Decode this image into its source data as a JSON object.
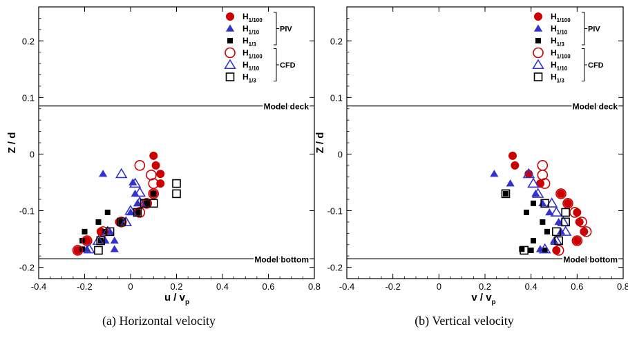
{
  "chart_data": [
    {
      "type": "scatter",
      "caption": "(a) Horizontal velocity",
      "xlabel": "u / v",
      "xlabel_sub": "p",
      "ylabel": "Z / d",
      "xlim": [
        -0.4,
        0.8
      ],
      "ylim": [
        -0.22,
        0.26
      ],
      "xticks": [
        -0.4,
        -0.2,
        0,
        0.2,
        0.4,
        0.6,
        0.8
      ],
      "xtick_labels": [
        "-0.4",
        "-0.2",
        "0",
        "0.2",
        "0.4",
        "0.6",
        "0.8"
      ],
      "yticks": [
        -0.2,
        -0.1,
        0,
        0.1,
        0.2
      ],
      "ytick_labels": [
        "-0.2",
        "-0.1",
        "0",
        "0.1",
        "0.2"
      ],
      "reference_lines": [
        {
          "label": "Model deck",
          "y": 0.085
        },
        {
          "label": "Model bottom",
          "y": -0.185
        }
      ],
      "legend": {
        "placement": "top-right",
        "groups": [
          {
            "label": "PIV",
            "entries": [
              0,
              1,
              2
            ]
          },
          {
            "label": "CFD",
            "entries": [
              3,
              4,
              5
            ]
          }
        ]
      },
      "series": [
        {
          "name": "H",
          "sub": "1/100",
          "marker": "circle-filled",
          "color": "#cc0000",
          "points": [
            [
              0.1,
              -0.003
            ],
            [
              0.11,
              -0.02
            ],
            [
              0.13,
              -0.035
            ],
            [
              0.13,
              -0.052
            ],
            [
              0.1,
              -0.07
            ],
            [
              0.07,
              -0.087
            ],
            [
              0.03,
              -0.103
            ],
            [
              -0.05,
              -0.12
            ],
            [
              -0.13,
              -0.137
            ],
            [
              -0.19,
              -0.153
            ],
            [
              -0.23,
              -0.17
            ]
          ]
        },
        {
          "name": "H",
          "sub": "1/10",
          "marker": "triangle-filled",
          "color": "#3333cc",
          "points": [
            [
              -0.12,
              -0.035
            ],
            [
              0.01,
              -0.05
            ],
            [
              0.02,
              -0.07
            ],
            [
              0.03,
              -0.087
            ],
            [
              0.0,
              -0.103
            ],
            [
              -0.04,
              -0.12
            ],
            [
              -0.09,
              -0.137
            ],
            [
              -0.07,
              -0.153
            ],
            [
              -0.11,
              -0.153
            ],
            [
              -0.19,
              -0.168
            ],
            [
              -0.07,
              -0.168
            ]
          ]
        },
        {
          "name": "H",
          "sub": "1/3",
          "marker": "square-filled",
          "color": "#000000",
          "points": [
            [
              0.1,
              -0.07
            ],
            [
              0.07,
              -0.087
            ],
            [
              0.03,
              -0.103
            ],
            [
              -0.1,
              -0.103
            ],
            [
              -0.04,
              -0.12
            ],
            [
              -0.14,
              -0.12
            ],
            [
              -0.2,
              -0.137
            ],
            [
              -0.11,
              -0.137
            ],
            [
              -0.21,
              -0.153
            ],
            [
              -0.13,
              -0.153
            ],
            [
              -0.21,
              -0.168
            ]
          ]
        },
        {
          "name": "H",
          "sub": "1/100",
          "marker": "circle-open",
          "color": "#cc0000",
          "points": [
            [
              0.04,
              -0.02
            ],
            [
              0.09,
              -0.037
            ],
            [
              0.1,
              -0.052
            ],
            [
              0.1,
              -0.07
            ],
            [
              0.07,
              -0.087
            ],
            [
              0.04,
              -0.103
            ],
            [
              -0.04,
              -0.12
            ],
            [
              -0.12,
              -0.137
            ],
            [
              -0.19,
              -0.153
            ],
            [
              -0.23,
              -0.17
            ]
          ]
        },
        {
          "name": "H",
          "sub": "1/10",
          "marker": "triangle-open",
          "color": "#3333cc",
          "points": [
            [
              -0.04,
              -0.035
            ],
            [
              0.02,
              -0.052
            ],
            [
              0.04,
              -0.068
            ],
            [
              0.04,
              -0.085
            ],
            [
              0.0,
              -0.1
            ],
            [
              -0.02,
              -0.12
            ],
            [
              -0.1,
              -0.137
            ],
            [
              -0.14,
              -0.153
            ],
            [
              -0.18,
              -0.168
            ]
          ]
        },
        {
          "name": "H",
          "sub": "1/3",
          "marker": "square-open",
          "color": "#000000",
          "points": [
            [
              0.2,
              -0.052
            ],
            [
              0.2,
              -0.07
            ],
            [
              0.1,
              -0.087
            ],
            [
              0.06,
              -0.087
            ],
            [
              0.03,
              -0.103
            ],
            [
              -0.04,
              -0.12
            ],
            [
              -0.09,
              -0.137
            ],
            [
              -0.13,
              -0.153
            ],
            [
              -0.14,
              -0.17
            ]
          ]
        }
      ]
    },
    {
      "type": "scatter",
      "caption": "(b) Vertical velocity",
      "xlabel": "v / v",
      "xlabel_sub": "p",
      "ylabel": "Z / d",
      "xlim": [
        -0.4,
        0.8
      ],
      "ylim": [
        -0.22,
        0.26
      ],
      "xticks": [
        -0.4,
        -0.2,
        0,
        0.2,
        0.4,
        0.6,
        0.8
      ],
      "xtick_labels": [
        "-0.4",
        "-0.2",
        "0",
        "0.2",
        "0.4",
        "0.6",
        "0.8"
      ],
      "yticks": [
        -0.2,
        -0.1,
        0,
        0.1,
        0.2
      ],
      "ytick_labels": [
        "-0.2",
        "-0.1",
        "0",
        "0.1",
        "0.2"
      ],
      "reference_lines": [
        {
          "label": "Model deck",
          "y": 0.085
        },
        {
          "label": "Model bottom",
          "y": -0.185
        }
      ],
      "legend": {
        "placement": "top-right",
        "groups": [
          {
            "label": "PIV",
            "entries": [
              0,
              1,
              2
            ]
          },
          {
            "label": "CFD",
            "entries": [
              3,
              4,
              5
            ]
          }
        ]
      },
      "series": [
        {
          "name": "H",
          "sub": "1/100",
          "marker": "circle-filled",
          "color": "#cc0000",
          "points": [
            [
              0.32,
              -0.003
            ],
            [
              0.33,
              -0.02
            ],
            [
              0.39,
              -0.035
            ],
            [
              0.44,
              -0.052
            ],
            [
              0.53,
              -0.07
            ],
            [
              0.56,
              -0.087
            ],
            [
              0.6,
              -0.103
            ],
            [
              0.61,
              -0.12
            ],
            [
              0.63,
              -0.137
            ],
            [
              0.6,
              -0.153
            ],
            [
              0.51,
              -0.17
            ]
          ]
        },
        {
          "name": "H",
          "sub": "1/10",
          "marker": "triangle-filled",
          "color": "#3333cc",
          "points": [
            [
              0.24,
              -0.035
            ],
            [
              0.31,
              -0.052
            ],
            [
              0.42,
              -0.07
            ],
            [
              0.45,
              -0.087
            ],
            [
              0.48,
              -0.103
            ],
            [
              0.52,
              -0.12
            ],
            [
              0.53,
              -0.137
            ],
            [
              0.5,
              -0.153
            ],
            [
              0.44,
              -0.168
            ]
          ]
        },
        {
          "name": "H",
          "sub": "1/3",
          "marker": "square-filled",
          "color": "#000000",
          "points": [
            [
              0.29,
              -0.07
            ],
            [
              0.41,
              -0.087
            ],
            [
              0.38,
              -0.103
            ],
            [
              0.45,
              -0.12
            ],
            [
              0.47,
              -0.137
            ],
            [
              0.41,
              -0.153
            ],
            [
              0.36,
              -0.168
            ],
            [
              0.4,
              -0.17
            ],
            [
              0.46,
              -0.17
            ]
          ]
        },
        {
          "name": "H",
          "sub": "1/100",
          "marker": "circle-open",
          "color": "#cc0000",
          "points": [
            [
              0.45,
              -0.02
            ],
            [
              0.45,
              -0.037
            ],
            [
              0.46,
              -0.052
            ],
            [
              0.53,
              -0.07
            ],
            [
              0.56,
              -0.087
            ],
            [
              0.59,
              -0.103
            ],
            [
              0.62,
              -0.12
            ],
            [
              0.64,
              -0.137
            ],
            [
              0.6,
              -0.153
            ],
            [
              0.52,
              -0.17
            ]
          ]
        },
        {
          "name": "H",
          "sub": "1/10",
          "marker": "triangle-open",
          "color": "#3333cc",
          "points": [
            [
              0.39,
              -0.035
            ],
            [
              0.41,
              -0.052
            ],
            [
              0.43,
              -0.07
            ],
            [
              0.49,
              -0.087
            ],
            [
              0.51,
              -0.103
            ],
            [
              0.54,
              -0.12
            ],
            [
              0.55,
              -0.137
            ],
            [
              0.51,
              -0.153
            ],
            [
              0.46,
              -0.168
            ]
          ]
        },
        {
          "name": "H",
          "sub": "1/3",
          "marker": "square-open",
          "color": "#000000",
          "points": [
            [
              0.29,
              -0.07
            ],
            [
              0.46,
              -0.087
            ],
            [
              0.55,
              -0.103
            ],
            [
              0.55,
              -0.12
            ],
            [
              0.51,
              -0.137
            ],
            [
              0.52,
              -0.153
            ],
            [
              0.37,
              -0.17
            ]
          ]
        }
      ]
    }
  ]
}
